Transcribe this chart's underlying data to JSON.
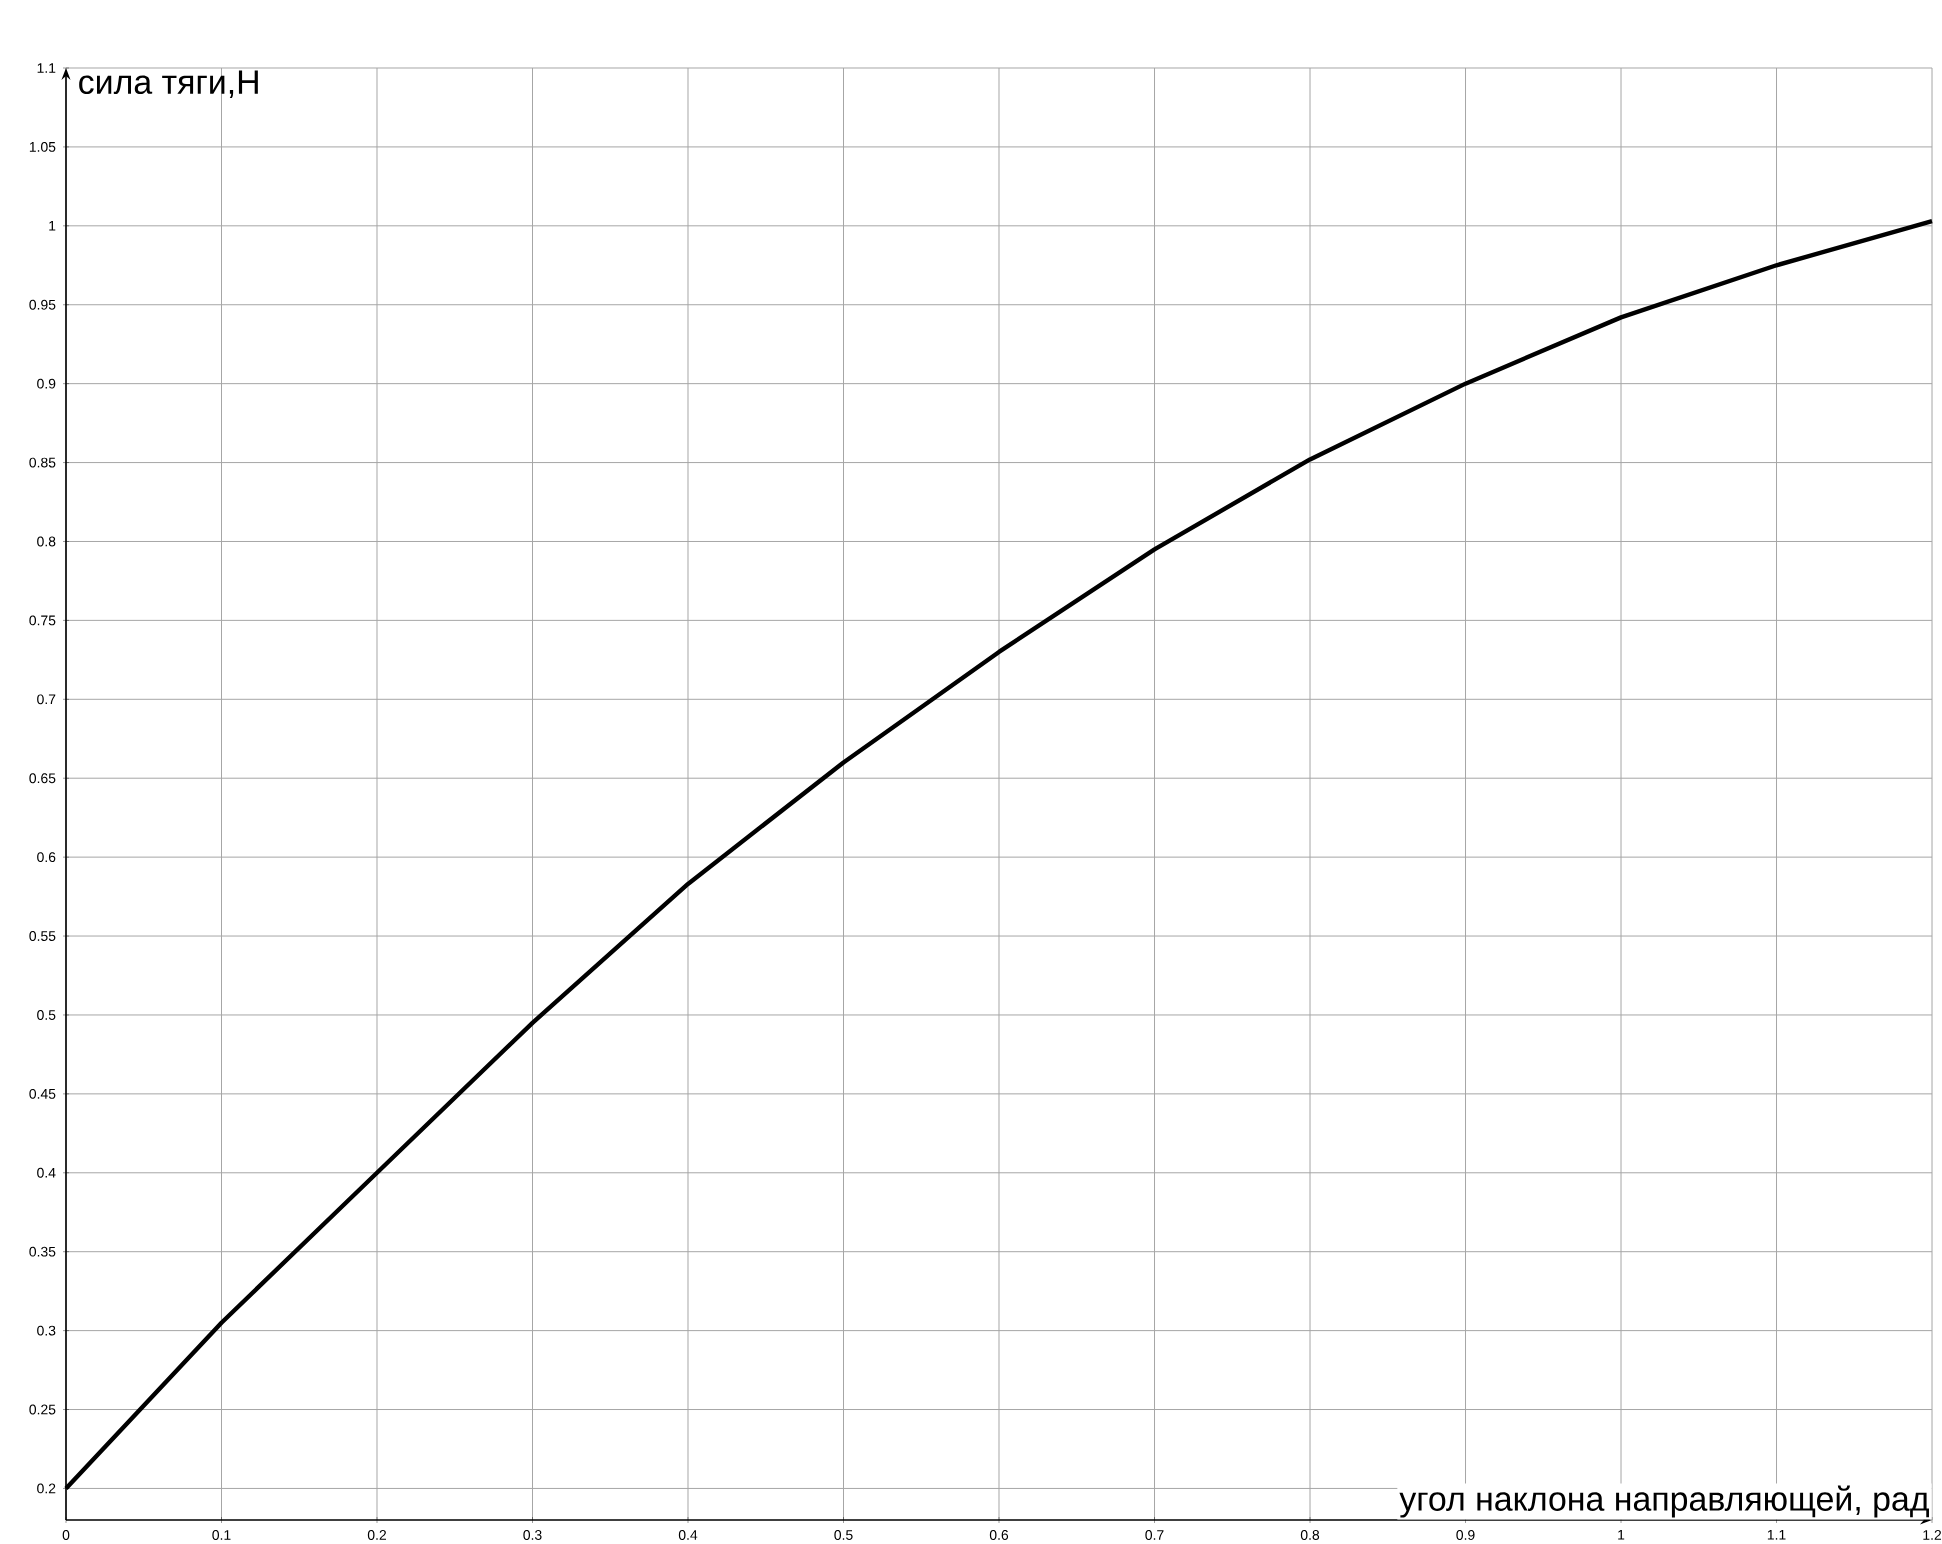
{
  "chart_data": {
    "type": "line",
    "xlabel": "угол наклона направляющей, рад",
    "ylabel": "сила тяги,Н",
    "x": [
      0,
      0.1,
      0.2,
      0.3,
      0.4,
      0.5,
      0.6,
      0.7,
      0.8,
      0.9,
      1.0,
      1.1,
      1.2
    ],
    "series": [
      {
        "color": "#000000",
        "values": [
          0.2,
          0.305,
          0.4,
          0.495,
          0.583,
          0.66,
          0.73,
          0.795,
          0.852,
          0.9,
          0.942,
          0.975,
          1.003
        ]
      }
    ],
    "xlim": [
      0,
      1.2
    ],
    "ylim": [
      0.18,
      1.1
    ],
    "xticks": [
      0,
      0.1,
      0.2,
      0.3,
      0.4,
      0.5,
      0.6,
      0.7,
      0.8,
      0.9,
      1,
      1.1,
      1.2
    ],
    "yticks": [
      0.2,
      0.25,
      0.3,
      0.35,
      0.4,
      0.45,
      0.5,
      0.55,
      0.6,
      0.65,
      0.7,
      0.75,
      0.8,
      0.85,
      0.9,
      0.95,
      1,
      1.05,
      1.1
    ],
    "grid": true,
    "marker": "none",
    "line_style": "solid"
  }
}
